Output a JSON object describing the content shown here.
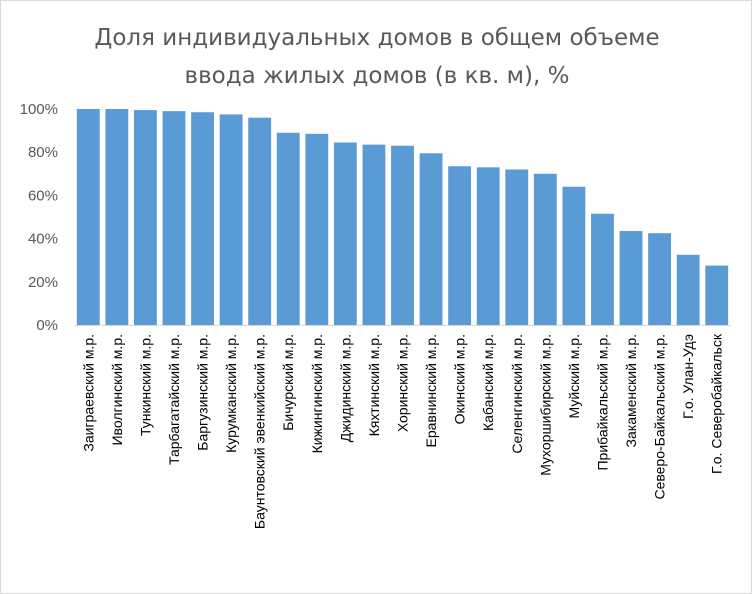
{
  "chart_data": {
    "type": "bar",
    "title": [
      "Доля индивидуальных домов в общем объеме",
      "ввода жилых домов (в кв. м), %"
    ],
    "categories": [
      "Заиграевский м.р.",
      "Иволгинский м.р.",
      "Тункинский м.р.",
      "Тарбагатайский м.р.",
      "Баргузинский м.р.",
      "Курумканский м.р.",
      "Баунтовский эвенкийский м.р.",
      "Бичурский м.р.",
      "Кижингинский м.р.",
      "Джидинский м.р.",
      "Кяхтинский м.р.",
      "Хоринский м.р.",
      "Еравнинский м.р.",
      "Окинский м.р.",
      "Кабанский м.р.",
      "Селенгинский м.р.",
      "Мухоршибирский м.р.",
      "Муйский м.р.",
      "Прибайкальский м.р.",
      "Закаменский м.р.",
      "Северо-Байкальский м.р.",
      "Г.о. Улан-Удэ",
      "Г.о. Северобайкальск"
    ],
    "values": [
      100,
      100,
      99.5,
      99,
      98.5,
      97.5,
      96,
      89,
      88.5,
      84.5,
      83.5,
      83,
      79.5,
      73.5,
      73,
      72,
      70,
      64,
      51.5,
      43.5,
      42.5,
      32.5,
      27.5
    ],
    "y_ticks": [
      "0%",
      "20%",
      "40%",
      "60%",
      "80%",
      "100%"
    ],
    "ylim": [
      0,
      100
    ],
    "bar_color": "#5b9bd5",
    "grid": false,
    "legend": false
  }
}
